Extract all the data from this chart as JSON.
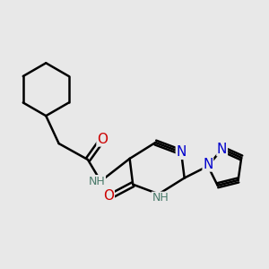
{
  "background_color": "#e8e8e8",
  "bond_color": "#000000",
  "line_width": 1.8,
  "atom_colors": {
    "C": "#000000",
    "N": "#0000cc",
    "O": "#cc0000",
    "H": "#4a7a6a"
  },
  "font_size": 9
}
